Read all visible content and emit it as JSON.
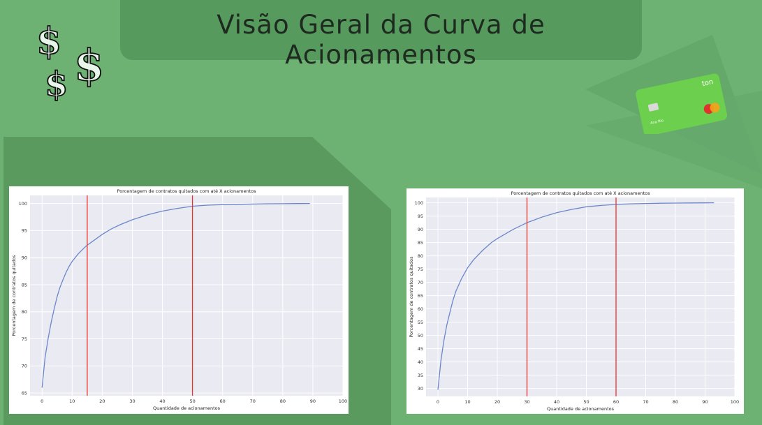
{
  "header": {
    "title": "Visão Geral da Curva de Acionamentos"
  },
  "card": {
    "brand": "ton",
    "holder": "Ana Rio"
  },
  "colors": {
    "background": "#6db273",
    "banner": "#579a5e",
    "line": "#6b87c9",
    "threshold": "#e8332a",
    "plot_bg": "#eaeaf2"
  },
  "chart_data": [
    {
      "type": "line",
      "title": "Porcentagem de contratos quitados com até X acionamentos",
      "xlabel": "Quantidade de acionamentos",
      "ylabel": "Porcentagem de contratos quitados",
      "xlim": [
        -4,
        100
      ],
      "ylim": [
        64.5,
        101.5
      ],
      "xticks": [
        0,
        10,
        20,
        30,
        40,
        50,
        60,
        70,
        80,
        90,
        100
      ],
      "yticks": [
        65,
        70,
        75,
        80,
        85,
        90,
        95,
        100
      ],
      "grid": true,
      "vlines": [
        15,
        50
      ],
      "series": [
        {
          "x": [
            0,
            1,
            2,
            3,
            4,
            5,
            6,
            7,
            8,
            9,
            10,
            12,
            14,
            15,
            17,
            20,
            23,
            26,
            30,
            35,
            40,
            45,
            50,
            55,
            60,
            65,
            70,
            75,
            80,
            85,
            89
          ],
          "values": [
            66.0,
            71.5,
            75.0,
            78.0,
            80.5,
            82.8,
            84.6,
            86.0,
            87.3,
            88.4,
            89.3,
            90.7,
            91.8,
            92.3,
            93.1,
            94.3,
            95.3,
            96.1,
            97.0,
            97.9,
            98.6,
            99.1,
            99.5,
            99.7,
            99.8,
            99.85,
            99.9,
            99.95,
            99.97,
            99.99,
            100.0
          ]
        }
      ]
    },
    {
      "type": "line",
      "title": "Porcentagem de contratos quitados com até X acionamentos",
      "xlabel": "Quantidade de acionamentos",
      "ylabel": "Porcentagem de contratos quitados",
      "xlim": [
        -4,
        100
      ],
      "ylim": [
        27,
        102
      ],
      "xticks": [
        0,
        10,
        20,
        30,
        40,
        50,
        60,
        70,
        80,
        90,
        100
      ],
      "yticks": [
        30,
        35,
        40,
        45,
        50,
        55,
        60,
        65,
        70,
        75,
        80,
        85,
        90,
        95,
        100
      ],
      "grid": true,
      "vlines": [
        30,
        60
      ],
      "series": [
        {
          "x": [
            0,
            1,
            2,
            3,
            4,
            5,
            6,
            8,
            10,
            12,
            15,
            18,
            20,
            25,
            30,
            35,
            40,
            45,
            50,
            55,
            60,
            65,
            70,
            75,
            80,
            85,
            90,
            93
          ],
          "values": [
            29.5,
            40.5,
            48.0,
            54.0,
            58.5,
            63.0,
            66.5,
            71.5,
            75.5,
            78.5,
            82.0,
            85.0,
            86.5,
            89.8,
            92.5,
            94.6,
            96.3,
            97.5,
            98.5,
            99.0,
            99.4,
            99.6,
            99.75,
            99.85,
            99.9,
            99.95,
            99.98,
            100.0
          ]
        }
      ]
    }
  ]
}
